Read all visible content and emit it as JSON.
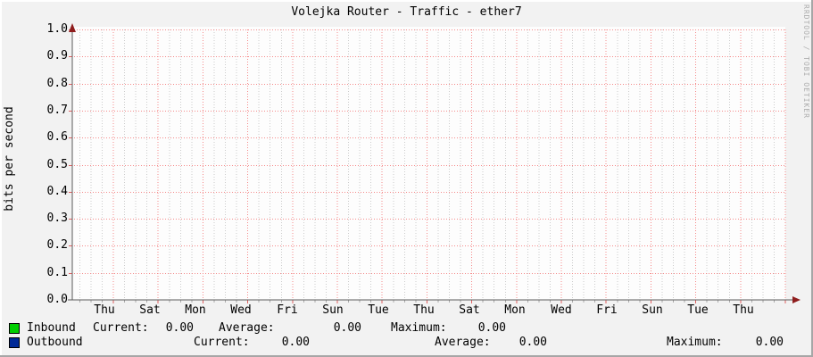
{
  "title": "Volejka Router - Traffic - ether7",
  "watermark": "RRDTOOL / TOBI OETIKER",
  "y_axis": {
    "label": "bits per second",
    "ticks": [
      "0.0",
      "0.1",
      "0.2",
      "0.3",
      "0.4",
      "0.5",
      "0.6",
      "0.7",
      "0.8",
      "0.9",
      "1.0"
    ]
  },
  "x_axis": {
    "ticks": [
      "Thu",
      "Sat",
      "Mon",
      "Wed",
      "Fri",
      "Sun",
      "Tue",
      "Thu",
      "Sat",
      "Mon",
      "Wed",
      "Fri",
      "Sun",
      "Tue",
      "Thu"
    ]
  },
  "legend": {
    "rows": [
      {
        "series": "Inbound",
        "swatch_color": "#00CF00",
        "stats": [
          {
            "label": "Current:",
            "value": "0.00"
          },
          {
            "label": "Average:",
            "value": "0.00"
          },
          {
            "label": "Maximum:",
            "value": "0.00"
          }
        ]
      },
      {
        "series": "Outbound",
        "swatch_color": "#002A97",
        "stats": [
          {
            "label": "Current:",
            "value": "0.00"
          },
          {
            "label": "Average:",
            "value": "0.00"
          },
          {
            "label": "Maximum:",
            "value": "0.00"
          }
        ]
      }
    ]
  },
  "colors": {
    "inbound": "#00CF00",
    "outbound": "#002A97",
    "grid_major": "#F58A8A",
    "grid_minor": "#CCCCCC",
    "grid_stub_major": "#E06060",
    "grid_stub_minor": "#AAAAAA",
    "axis": "#5A5A5A",
    "arrow": "#8F1D1D",
    "canvas": "#FDFDFD",
    "background": "#F2F2F2"
  },
  "chart_data": {
    "type": "line",
    "title": "Volejka Router - Traffic - ether7",
    "xlabel": "",
    "ylabel": "bits per second",
    "ylim": [
      0.0,
      1.0
    ],
    "x": [
      "Thu",
      "Sat",
      "Mon",
      "Wed",
      "Fri",
      "Sun",
      "Tue",
      "Thu",
      "Sat",
      "Mon",
      "Wed",
      "Fri",
      "Sun",
      "Tue",
      "Thu"
    ],
    "series": [
      {
        "name": "Inbound",
        "color": "#00CF00",
        "values": [
          0,
          0,
          0,
          0,
          0,
          0,
          0,
          0,
          0,
          0,
          0,
          0,
          0,
          0,
          0
        ],
        "current": 0.0,
        "average": 0.0,
        "maximum": 0.0
      },
      {
        "name": "Outbound",
        "color": "#002A97",
        "values": [
          0,
          0,
          0,
          0,
          0,
          0,
          0,
          0,
          0,
          0,
          0,
          0,
          0,
          0,
          0
        ],
        "current": 0.0,
        "average": 0.0,
        "maximum": 0.0
      }
    ],
    "grid": true,
    "legend_position": "bottom"
  }
}
